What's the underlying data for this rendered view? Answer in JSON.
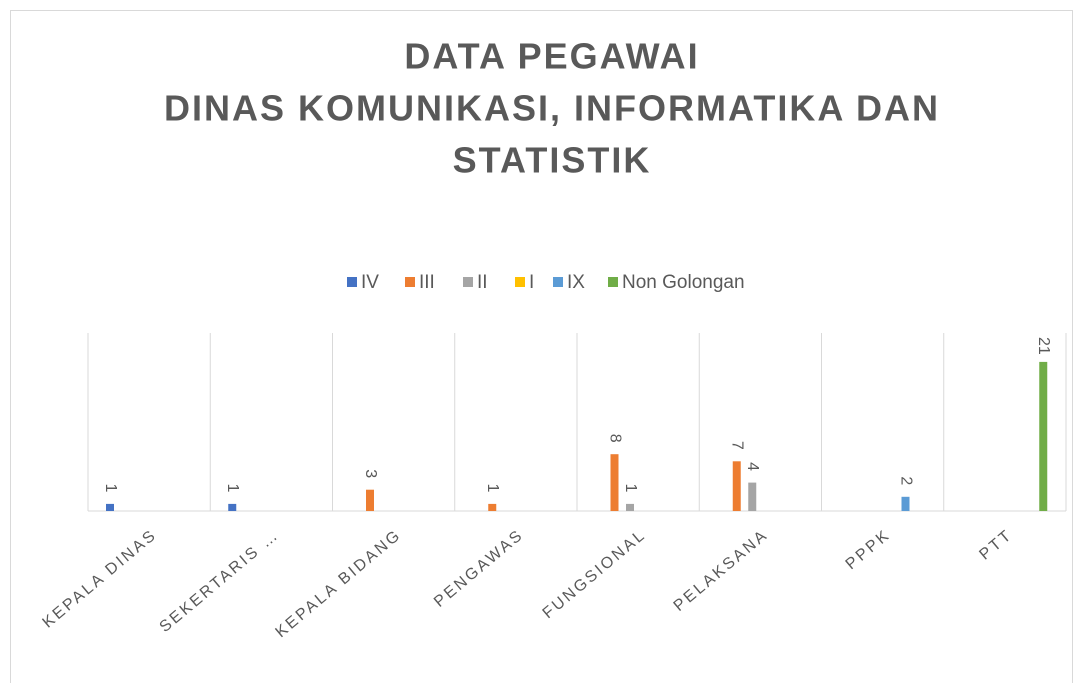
{
  "chart_data": {
    "type": "bar",
    "title": [
      "DATA PEGAWAI",
      "DINAS KOMUNIKASI, INFORMATIKA DAN",
      "STATISTIK"
    ],
    "categories": [
      "KEPALA DINAS",
      "SEKERTARIS …",
      "KEPALA BIDANG",
      "PENGAWAS",
      "FUNGSIONAL",
      "PELAKSANA",
      "PPPK",
      "PTT"
    ],
    "series": [
      {
        "name": "IV",
        "color": "#4472c4",
        "values": [
          1,
          1,
          null,
          null,
          null,
          null,
          null,
          null
        ]
      },
      {
        "name": "III",
        "color": "#ed7d31",
        "values": [
          null,
          null,
          3,
          1,
          8,
          7,
          null,
          null
        ]
      },
      {
        "name": "II",
        "color": "#a5a5a5",
        "values": [
          null,
          null,
          null,
          null,
          1,
          4,
          null,
          null
        ]
      },
      {
        "name": "I",
        "color": "#ffc000",
        "values": [
          null,
          null,
          null,
          null,
          null,
          null,
          null,
          null
        ]
      },
      {
        "name": "IX",
        "color": "#5b9bd5",
        "values": [
          null,
          null,
          null,
          null,
          null,
          null,
          2,
          null
        ]
      },
      {
        "name": "Non Golongan",
        "color": "#70ad47",
        "values": [
          null,
          null,
          null,
          null,
          null,
          null,
          null,
          21
        ]
      }
    ],
    "legend": "top",
    "grid": true
  }
}
